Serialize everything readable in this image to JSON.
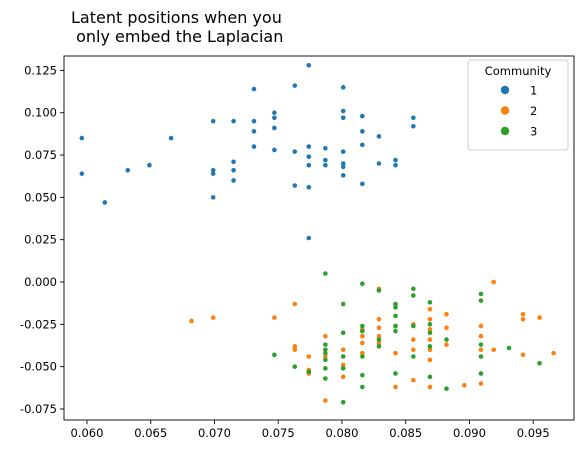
{
  "chart_data": {
    "type": "scatter",
    "title": "Latent positions when you\n only embed the Laplacian",
    "xlabel": "",
    "ylabel": "",
    "xlim": [
      0.0582,
      0.0982
    ],
    "ylim": [
      -0.0815,
      0.1335
    ],
    "x_ticks": [
      "0.060",
      "0.065",
      "0.070",
      "0.075",
      "0.080",
      "0.085",
      "0.090",
      "0.095"
    ],
    "y_ticks": [
      "-0.075",
      "-0.050",
      "-0.025",
      "0.000",
      "0.025",
      "0.050",
      "0.075",
      "0.100",
      "0.125"
    ],
    "grid": false,
    "legend": {
      "title": "Community",
      "placement": "top-right",
      "entries": [
        {
          "label": "1",
          "color": "#1f77b4"
        },
        {
          "label": "2",
          "color": "#ff7f0e"
        },
        {
          "label": "3",
          "color": "#2ca02c"
        }
      ]
    },
    "series": [
      {
        "name": "1",
        "color": "#1f77b4",
        "points": [
          [
            0.0596,
            0.085
          ],
          [
            0.0596,
            0.064
          ],
          [
            0.0614,
            0.047
          ],
          [
            0.0632,
            0.066
          ],
          [
            0.0649,
            0.069
          ],
          [
            0.0666,
            0.085
          ],
          [
            0.0699,
            0.095
          ],
          [
            0.0699,
            0.066
          ],
          [
            0.0699,
            0.064
          ],
          [
            0.0699,
            0.05
          ],
          [
            0.0715,
            0.095
          ],
          [
            0.0715,
            0.071
          ],
          [
            0.0715,
            0.066
          ],
          [
            0.0715,
            0.06
          ],
          [
            0.0731,
            0.114
          ],
          [
            0.0731,
            0.095
          ],
          [
            0.0731,
            0.089
          ],
          [
            0.0731,
            0.08
          ],
          [
            0.0747,
            0.1
          ],
          [
            0.0747,
            0.097
          ],
          [
            0.0747,
            0.091
          ],
          [
            0.0747,
            0.078
          ],
          [
            0.0763,
            0.116
          ],
          [
            0.0763,
            0.077
          ],
          [
            0.0763,
            0.057
          ],
          [
            0.0774,
            0.128
          ],
          [
            0.0774,
            0.08
          ],
          [
            0.0774,
            0.074
          ],
          [
            0.0774,
            0.069
          ],
          [
            0.0774,
            0.056
          ],
          [
            0.0774,
            0.026
          ],
          [
            0.0787,
            0.079
          ],
          [
            0.0787,
            0.072
          ],
          [
            0.0787,
            0.069
          ],
          [
            0.0801,
            0.115
          ],
          [
            0.0801,
            0.101
          ],
          [
            0.0801,
            0.097
          ],
          [
            0.0801,
            0.077
          ],
          [
            0.0801,
            0.07
          ],
          [
            0.0801,
            0.068
          ],
          [
            0.0801,
            0.063
          ],
          [
            0.0816,
            0.098
          ],
          [
            0.0816,
            0.089
          ],
          [
            0.0816,
            0.081
          ],
          [
            0.0816,
            0.058
          ],
          [
            0.0829,
            0.086
          ],
          [
            0.0829,
            0.07
          ],
          [
            0.0842,
            0.072
          ],
          [
            0.0842,
            0.069
          ],
          [
            0.0856,
            0.097
          ],
          [
            0.0856,
            0.092
          ]
        ]
      },
      {
        "name": "2",
        "color": "#ff7f0e",
        "points": [
          [
            0.0682,
            -0.023
          ],
          [
            0.0699,
            -0.021
          ],
          [
            0.0747,
            -0.021
          ],
          [
            0.0763,
            -0.013
          ],
          [
            0.0763,
            -0.038
          ],
          [
            0.0763,
            -0.04
          ],
          [
            0.0774,
            -0.044
          ],
          [
            0.0774,
            -0.052
          ],
          [
            0.0774,
            -0.054
          ],
          [
            0.0787,
            -0.032
          ],
          [
            0.0787,
            -0.044
          ],
          [
            0.0787,
            -0.07
          ],
          [
            0.0801,
            -0.04
          ],
          [
            0.0801,
            -0.049
          ],
          [
            0.0801,
            -0.056
          ],
          [
            0.0816,
            -0.028
          ],
          [
            0.0816,
            -0.032
          ],
          [
            0.0816,
            -0.036
          ],
          [
            0.0816,
            -0.042
          ],
          [
            0.0829,
            -0.004
          ],
          [
            0.0829,
            -0.022
          ],
          [
            0.0829,
            -0.027
          ],
          [
            0.0829,
            -0.032
          ],
          [
            0.0829,
            -0.036
          ],
          [
            0.0842,
            -0.026
          ],
          [
            0.0842,
            -0.042
          ],
          [
            0.0842,
            -0.062
          ],
          [
            0.0856,
            -0.025
          ],
          [
            0.0856,
            -0.034
          ],
          [
            0.0856,
            -0.04
          ],
          [
            0.0856,
            -0.058
          ],
          [
            0.0869,
            -0.016
          ],
          [
            0.0869,
            -0.022
          ],
          [
            0.0869,
            -0.028
          ],
          [
            0.0869,
            -0.034
          ],
          [
            0.0869,
            -0.04
          ],
          [
            0.0869,
            -0.046
          ],
          [
            0.0869,
            -0.062
          ],
          [
            0.0882,
            -0.019
          ],
          [
            0.0882,
            -0.027
          ],
          [
            0.0882,
            -0.037
          ],
          [
            0.0896,
            -0.061
          ],
          [
            0.0909,
            -0.026
          ],
          [
            0.0909,
            -0.032
          ],
          [
            0.0909,
            -0.04
          ],
          [
            0.0909,
            -0.06
          ],
          [
            0.0919,
            0.0
          ],
          [
            0.0919,
            -0.04
          ],
          [
            0.0942,
            -0.019
          ],
          [
            0.0942,
            -0.022
          ],
          [
            0.0942,
            -0.043
          ],
          [
            0.0955,
            -0.021
          ],
          [
            0.0966,
            -0.042
          ]
        ]
      },
      {
        "name": "3",
        "color": "#2ca02c",
        "points": [
          [
            0.0747,
            -0.043
          ],
          [
            0.0763,
            -0.05
          ],
          [
            0.0774,
            -0.053
          ],
          [
            0.0787,
            0.005
          ],
          [
            0.0787,
            -0.037
          ],
          [
            0.0787,
            -0.04
          ],
          [
            0.0787,
            -0.042
          ],
          [
            0.0787,
            -0.046
          ],
          [
            0.0787,
            -0.051
          ],
          [
            0.0787,
            -0.057
          ],
          [
            0.0801,
            -0.013
          ],
          [
            0.0801,
            -0.03
          ],
          [
            0.0801,
            -0.044
          ],
          [
            0.0801,
            -0.051
          ],
          [
            0.0801,
            -0.071
          ],
          [
            0.0816,
            -0.001
          ],
          [
            0.0816,
            -0.026
          ],
          [
            0.0816,
            -0.029
          ],
          [
            0.0816,
            -0.044
          ],
          [
            0.0816,
            -0.055
          ],
          [
            0.0816,
            -0.062
          ],
          [
            0.0829,
            -0.005
          ],
          [
            0.0829,
            -0.034
          ],
          [
            0.0829,
            -0.038
          ],
          [
            0.0842,
            -0.013
          ],
          [
            0.0842,
            -0.015
          ],
          [
            0.0842,
            -0.02
          ],
          [
            0.0842,
            -0.026
          ],
          [
            0.0842,
            -0.029
          ],
          [
            0.0842,
            -0.054
          ],
          [
            0.0856,
            -0.004
          ],
          [
            0.0856,
            -0.008
          ],
          [
            0.0856,
            -0.026
          ],
          [
            0.0856,
            -0.044
          ],
          [
            0.0869,
            -0.012
          ],
          [
            0.0869,
            -0.025
          ],
          [
            0.0869,
            -0.03
          ],
          [
            0.0869,
            -0.038
          ],
          [
            0.0869,
            -0.056
          ],
          [
            0.0882,
            -0.034
          ],
          [
            0.0882,
            -0.063
          ],
          [
            0.0909,
            -0.007
          ],
          [
            0.0909,
            -0.011
          ],
          [
            0.0909,
            -0.037
          ],
          [
            0.0909,
            -0.044
          ],
          [
            0.0909,
            -0.054
          ],
          [
            0.0931,
            -0.039
          ],
          [
            0.0955,
            -0.048
          ]
        ]
      }
    ]
  }
}
